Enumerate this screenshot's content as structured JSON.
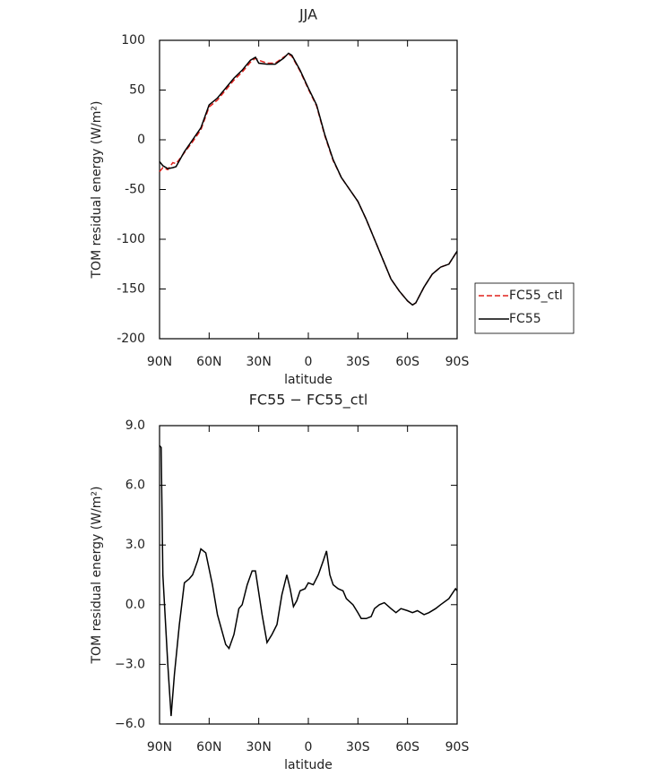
{
  "chart_data": [
    {
      "type": "line",
      "title": "JJA",
      "xlabel": "latitude",
      "ylabel": "TOM residual energy (W/m²)",
      "xlim": [
        90,
        -90
      ],
      "ylim": [
        -200,
        100
      ],
      "xticks": [
        {
          "value": 90,
          "label": "90N"
        },
        {
          "value": 60,
          "label": "60N"
        },
        {
          "value": 30,
          "label": "30N"
        },
        {
          "value": 0,
          "label": "0"
        },
        {
          "value": -30,
          "label": "30S"
        },
        {
          "value": -60,
          "label": "60S"
        },
        {
          "value": -90,
          "label": "90S"
        }
      ],
      "yticks": [
        -200,
        -150,
        -100,
        -50,
        0,
        50,
        100
      ],
      "legend": "right",
      "x": [
        90,
        88,
        85,
        82,
        80,
        75,
        70,
        65,
        60,
        55,
        50,
        45,
        40,
        35,
        32,
        30,
        25,
        20,
        15,
        12,
        10,
        5,
        0,
        -5,
        -10,
        -15,
        -20,
        -25,
        -30,
        -35,
        -40,
        -45,
        -50,
        -55,
        -60,
        -63,
        -65,
        -70,
        -75,
        -80,
        -85,
        -90
      ],
      "series": [
        {
          "name": "FC55_ctl",
          "color": "#e0201b",
          "dashed": true,
          "values": [
            -32,
            -28,
            -30,
            -23,
            -24,
            -13,
            -2,
            10,
            33,
            40,
            50,
            60,
            68,
            78,
            82,
            80,
            77,
            77,
            83,
            86,
            84,
            69,
            51,
            34,
            4,
            -21,
            -38,
            -50,
            -62,
            -80,
            -100,
            -120,
            -140,
            -152,
            -162,
            -166,
            -164,
            -148,
            -135,
            -128,
            -125,
            -112
          ]
        },
        {
          "name": "FC55",
          "color": "#000000",
          "dashed": false,
          "values": [
            -22,
            -26,
            -29,
            -28,
            -27,
            -12,
            0,
            12,
            35,
            42,
            52,
            62,
            70,
            80,
            83,
            77,
            76,
            76,
            82,
            87,
            85,
            70,
            52,
            35,
            5,
            -20,
            -38,
            -50,
            -62,
            -80,
            -100,
            -120,
            -140,
            -152,
            -162,
            -166,
            -164,
            -148,
            -135,
            -128,
            -125,
            -112
          ]
        }
      ]
    },
    {
      "type": "line",
      "title": "FC55 − FC55_ctl",
      "xlabel": "latitude",
      "ylabel": "TOM residual energy (W/m²)",
      "xlim": [
        90,
        -90
      ],
      "ylim": [
        -6,
        9
      ],
      "xticks": [
        {
          "value": 90,
          "label": "90N"
        },
        {
          "value": 60,
          "label": "60N"
        },
        {
          "value": 30,
          "label": "30N"
        },
        {
          "value": 0,
          "label": "0"
        },
        {
          "value": -30,
          "label": "30S"
        },
        {
          "value": -60,
          "label": "60S"
        },
        {
          "value": -90,
          "label": "90S"
        }
      ],
      "yticks": [
        {
          "value": -6,
          "label": "−6.0"
        },
        {
          "value": -3,
          "label": "−3.0"
        },
        {
          "value": 0,
          "label": "0.0"
        },
        {
          "value": 3,
          "label": "3.0"
        },
        {
          "value": 6,
          "label": "6.0"
        },
        {
          "value": 9,
          "label": "9.0"
        }
      ],
      "x": [
        90,
        89,
        88,
        85,
        83,
        81,
        78,
        75,
        72,
        70,
        67,
        65,
        62,
        58,
        55,
        50,
        48,
        45,
        42,
        40,
        37,
        34,
        32,
        28,
        25,
        22,
        19,
        16,
        13,
        11,
        9,
        7,
        5,
        2,
        0,
        -3,
        -6,
        -9,
        -11,
        -13,
        -15,
        -18,
        -21,
        -23,
        -27,
        -30,
        -32,
        -35,
        -38,
        -40,
        -43,
        -46,
        -50,
        -53,
        -56,
        -60,
        -63,
        -66,
        -70,
        -73,
        -77,
        -80,
        -85,
        -89,
        -90
      ],
      "series": [
        {
          "color": "#000000",
          "dashed": false,
          "values": [
            8,
            7.9,
            1.5,
            -3,
            -5.6,
            -3.5,
            -1,
            1.1,
            1.3,
            1.5,
            2.2,
            2.8,
            2.6,
            1.0,
            -0.5,
            -2.0,
            -2.2,
            -1.5,
            -0.2,
            0,
            1.0,
            1.7,
            1.7,
            -0.5,
            -1.9,
            -1.5,
            -1.0,
            0.5,
            1.5,
            0.8,
            -0.1,
            0.2,
            0.7,
            0.8,
            1.1,
            1.0,
            1.5,
            2.2,
            2.7,
            1.5,
            1.0,
            0.8,
            0.7,
            0.3,
            0,
            -0.4,
            -0.7,
            -0.7,
            -0.6,
            -0.2,
            0,
            0.1,
            -0.2,
            -0.4,
            -0.2,
            -0.3,
            -0.4,
            -0.3,
            -0.5,
            -0.4,
            -0.2,
            0,
            0.3,
            0.8,
            0.7
          ]
        }
      ]
    }
  ]
}
